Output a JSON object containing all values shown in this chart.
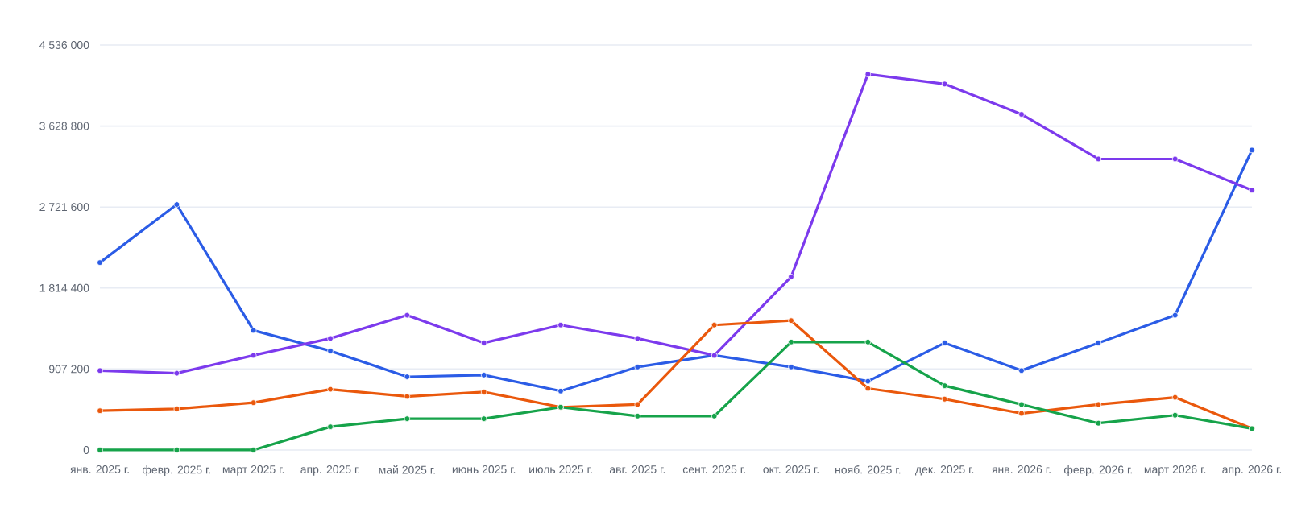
{
  "chart_data": {
    "type": "line",
    "categories": [
      "янв. 2025 г.",
      "февр. 2025 г.",
      "март 2025 г.",
      "апр. 2025 г.",
      "май 2025 г.",
      "июнь 2025 г.",
      "июль 2025 г.",
      "авг. 2025 г.",
      "сент. 2025 г.",
      "окт. 2025 г.",
      "нояб. 2025 г.",
      "дек. 2025 г.",
      "янв. 2026 г.",
      "февр. 2026 г.",
      "март 2026 г.",
      "апр. 2026 г."
    ],
    "series": [
      {
        "color": "#2b5ce6",
        "values": [
          2100000,
          2750000,
          1340000,
          1110000,
          820000,
          840000,
          660000,
          930000,
          1060000,
          930000,
          770000,
          1200000,
          890000,
          1200000,
          1510000,
          3360000
        ]
      },
      {
        "color": "#7c3aed",
        "values": [
          890000,
          860000,
          1060000,
          1250000,
          1510000,
          1200000,
          1400000,
          1250000,
          1060000,
          1940000,
          4210000,
          4100000,
          3760000,
          3260000,
          3260000,
          2910000
        ]
      },
      {
        "color": "#ea580c",
        "values": [
          440000,
          460000,
          530000,
          680000,
          600000,
          650000,
          480000,
          510000,
          1400000,
          1450000,
          690000,
          570000,
          410000,
          510000,
          590000,
          240000
        ]
      },
      {
        "color": "#16a34a",
        "values": [
          0,
          0,
          0,
          260000,
          350000,
          350000,
          480000,
          380000,
          380000,
          1210000,
          1210000,
          720000,
          510000,
          300000,
          390000,
          240000
        ]
      }
    ],
    "ylim": [
      0,
      4536000
    ],
    "yticks": [
      0,
      {
        "value": 907200,
        "label": "907 200"
      },
      {
        "value": 1814400,
        "label": "1 814 400"
      },
      {
        "value": 2721600,
        "label": "2 721 600"
      },
      {
        "value": 3628800,
        "label": "3 628 800"
      },
      {
        "value": 4536000,
        "label": "4 536 000"
      }
    ],
    "grid": "y",
    "marker": "circle",
    "line_style": "solid",
    "legend": false
  }
}
